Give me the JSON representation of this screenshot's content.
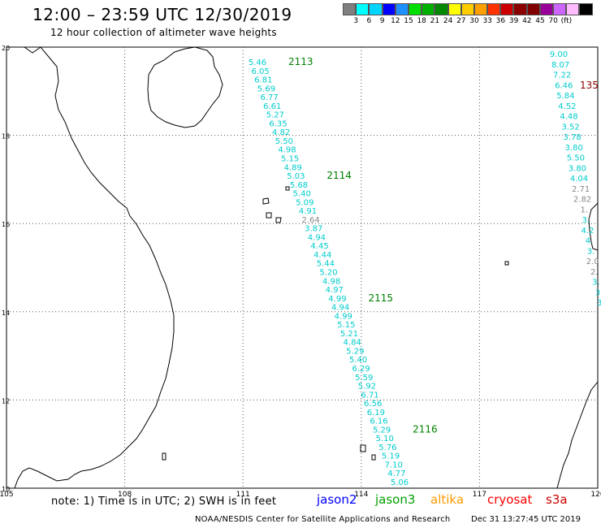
{
  "header": {
    "title": "12:00 – 23:59 UTC 12/30/2019",
    "subtitle": "12 hour collection of altimeter wave heights"
  },
  "legend": {
    "colors": [
      "#7f7f7f",
      "#00ffff",
      "#00d4ff",
      "#0000ff",
      "#1e90ff",
      "#00e000",
      "#00b000",
      "#008800",
      "#ffff00",
      "#ffcc00",
      "#ffa000",
      "#ff3300",
      "#cc0000",
      "#8b0000",
      "#800000",
      "#990099",
      "#cc66ff",
      "#ffbbff",
      "#000000"
    ],
    "labels": [
      "3",
      "6",
      "9",
      "12",
      "15",
      "18",
      "21",
      "24",
      "27",
      "30",
      "33",
      "36",
      "39",
      "42",
      "45",
      "70",
      "(ft)"
    ]
  },
  "axes": {
    "x_ticks": [
      "105",
      "108",
      "111",
      "114",
      "117",
      "120"
    ],
    "y_ticks": [
      "20",
      "18",
      "16",
      "14",
      "12",
      "10"
    ]
  },
  "tracks": [
    {
      "id": "2113",
      "color": "#008000",
      "values": [
        "5.46",
        "6.05",
        "6.81",
        "5.69",
        "6.77",
        "6.61",
        "5.27",
        "6.35",
        "4.82",
        "5.50",
        "4.98",
        "5.15",
        "4.89",
        "5.03",
        "5.68",
        "5.40",
        "5.09",
        "4.91",
        "2.64",
        "3.87",
        "4.94",
        "4.45",
        "4.44",
        "5.44",
        "5.20",
        "4.98",
        "4.97",
        "4.99",
        "4.94",
        "4.99",
        "5.15",
        "5.21",
        "4.84",
        "5.29",
        "5.40",
        "6.29",
        "5.59",
        "5.92",
        "6.71",
        "6.56",
        "6.19",
        "6.16",
        "5.29",
        "5.10",
        "5.76",
        "5.19",
        "7.10",
        "4.77",
        "5.06"
      ],
      "track_labels": [
        "2113",
        "2114",
        "2115",
        "2116"
      ]
    },
    {
      "id": "135",
      "color": "#8b0000",
      "values": [
        "9.00",
        "8.07",
        "7.22",
        "6.46",
        "5.84",
        "4.52",
        "4.48",
        "3.52",
        "3.78",
        "3.80",
        "5.50",
        "3.80",
        "4.04",
        "2.71",
        "2.82",
        "1.",
        "3.",
        "4.2",
        "4.",
        "3.",
        "2.0",
        "2.",
        "3.",
        "3",
        "3"
      ]
    }
  ],
  "footer": {
    "note": "note: 1) Time is in UTC; 2) SWH is in feet",
    "sats": [
      {
        "name": "jason2",
        "color": "#0000ff"
      },
      {
        "name": "jason3",
        "color": "#00a000"
      },
      {
        "name": "altika",
        "color": "#ff9900"
      },
      {
        "name": "cryosat",
        "color": "#ff0000"
      },
      {
        "name": "s3a",
        "color": "#cc0000"
      }
    ],
    "credit": "NOAA/NESDIS Center for Satellite Applications and Research",
    "timestamp": "Dec 31 13:27:45 UTC 2019"
  }
}
